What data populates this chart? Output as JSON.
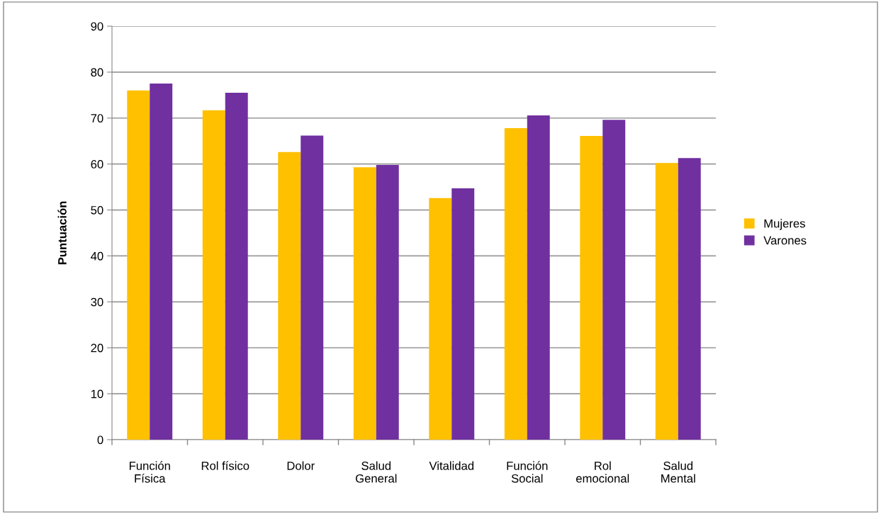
{
  "chart_data": {
    "type": "bar",
    "ylabel": "Puntuación",
    "categories": [
      "Función\nFísica",
      "Rol físico",
      "Dolor",
      "Salud\nGeneral",
      "Vitalidad",
      "Función\nSocial",
      "Rol\nemocional",
      "Salud\nMental"
    ],
    "series": [
      {
        "name": "Mujeres",
        "color": "#ffc000",
        "values": [
          76.0,
          71.7,
          62.6,
          59.3,
          52.6,
          67.8,
          66.1,
          60.2
        ]
      },
      {
        "name": "Varones",
        "color": "#7030a0",
        "values": [
          77.5,
          75.5,
          66.2,
          59.8,
          54.7,
          70.6,
          69.6,
          61.3
        ]
      }
    ],
    "ylim": [
      0,
      90
    ],
    "yticks": [
      0,
      10,
      20,
      30,
      40,
      50,
      60,
      70,
      80,
      90
    ],
    "grid": "y",
    "legend": "right"
  }
}
